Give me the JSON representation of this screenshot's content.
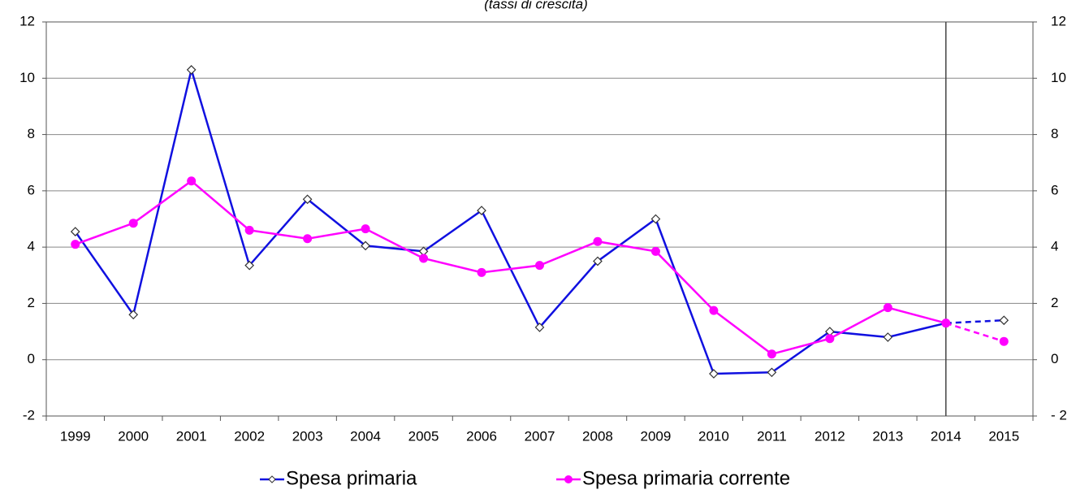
{
  "chart_data": {
    "type": "line",
    "subtitle": "(tassi di crescita)",
    "categories": [
      "1999",
      "2000",
      "2001",
      "2002",
      "2003",
      "2004",
      "2005",
      "2006",
      "2007",
      "2008",
      "2009",
      "2010",
      "2011",
      "2012",
      "2013",
      "2014",
      "2015"
    ],
    "series": [
      {
        "name": "Spesa primaria",
        "color": "#1010e0",
        "marker": "diamond",
        "values": [
          4.55,
          1.6,
          10.3,
          3.35,
          5.7,
          4.05,
          3.85,
          5.3,
          1.15,
          3.5,
          5.0,
          -0.5,
          -0.45,
          1.0,
          0.8,
          1.3,
          1.4
        ]
      },
      {
        "name": "Spesa primaria corrente",
        "color": "#ff00ff",
        "marker": "circle",
        "values": [
          4.1,
          4.85,
          6.35,
          4.6,
          4.3,
          4.65,
          3.6,
          3.1,
          3.35,
          4.2,
          3.85,
          1.75,
          0.2,
          0.75,
          1.85,
          1.3,
          0.65
        ]
      }
    ],
    "projection_from": "2014",
    "ylim": [
      -2,
      12
    ],
    "yticks": [
      -2,
      0,
      2,
      4,
      6,
      8,
      10,
      12
    ],
    "y2lim": [
      -2,
      12
    ],
    "y2ticks": [
      {
        "value": -2,
        "label": "- 2"
      },
      0,
      2,
      4,
      6,
      8,
      10,
      12
    ],
    "grid": true,
    "legend": "bottom"
  }
}
